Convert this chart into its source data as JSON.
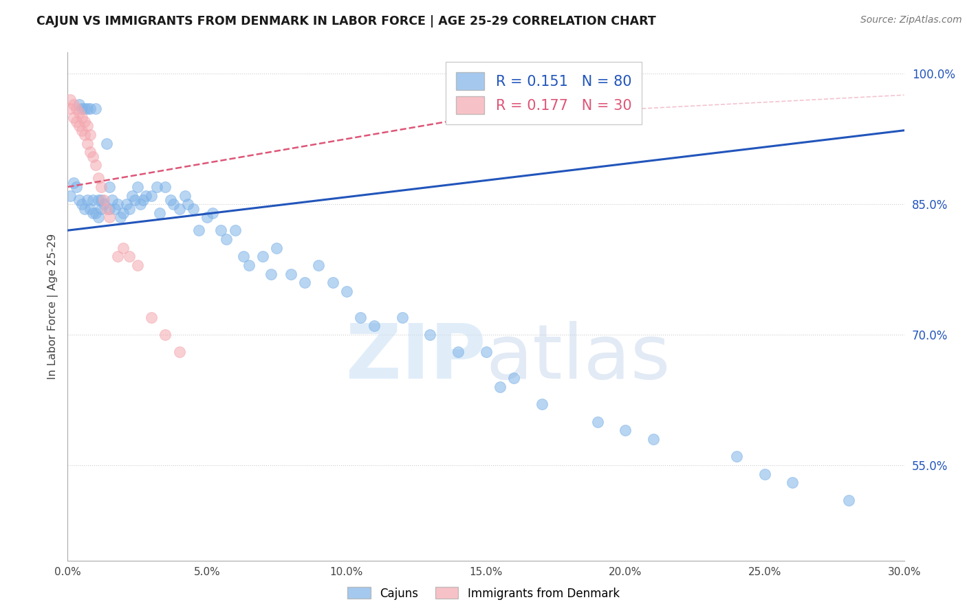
{
  "title": "CAJUN VS IMMIGRANTS FROM DENMARK IN LABOR FORCE | AGE 25-29 CORRELATION CHART",
  "source": "Source: ZipAtlas.com",
  "ylabel": "In Labor Force | Age 25-29",
  "xmin": 0.0,
  "xmax": 0.3,
  "ymin": 0.44,
  "ymax": 1.025,
  "yticks": [
    0.55,
    0.7,
    0.85,
    1.0
  ],
  "ytick_labels": [
    "55.0%",
    "70.0%",
    "85.0%",
    "100.0%"
  ],
  "xticks": [
    0.0,
    0.05,
    0.1,
    0.15,
    0.2,
    0.25,
    0.3
  ],
  "xtick_labels": [
    "0.0%",
    "5.0%",
    "10.0%",
    "15.0%",
    "20.0%",
    "25.0%",
    "30.0%"
  ],
  "legend_blue_r": "R = 0.151",
  "legend_blue_n": "N = 80",
  "legend_pink_r": "R = 0.177",
  "legend_pink_n": "N = 30",
  "blue_color": "#7fb3e8",
  "pink_color": "#f4a8b0",
  "trend_blue_color": "#2255bb",
  "trend_pink_color": "#dd5577",
  "watermark_zip": "ZIP",
  "watermark_atlas": "atlas",
  "blue_scatter_x": [
    0.001,
    0.002,
    0.003,
    0.004,
    0.004,
    0.005,
    0.005,
    0.006,
    0.006,
    0.007,
    0.007,
    0.008,
    0.008,
    0.009,
    0.009,
    0.01,
    0.01,
    0.011,
    0.011,
    0.012,
    0.012,
    0.013,
    0.014,
    0.015,
    0.015,
    0.016,
    0.017,
    0.018,
    0.019,
    0.02,
    0.021,
    0.022,
    0.023,
    0.024,
    0.025,
    0.026,
    0.027,
    0.028,
    0.03,
    0.032,
    0.033,
    0.035,
    0.037,
    0.038,
    0.04,
    0.042,
    0.043,
    0.045,
    0.047,
    0.05,
    0.052,
    0.055,
    0.057,
    0.06,
    0.063,
    0.065,
    0.07,
    0.073,
    0.075,
    0.08,
    0.085,
    0.09,
    0.095,
    0.1,
    0.105,
    0.11,
    0.12,
    0.13,
    0.14,
    0.15,
    0.155,
    0.16,
    0.17,
    0.19,
    0.2,
    0.21,
    0.24,
    0.25,
    0.26,
    0.28
  ],
  "blue_scatter_y": [
    0.86,
    0.875,
    0.87,
    0.965,
    0.855,
    0.96,
    0.85,
    0.96,
    0.845,
    0.96,
    0.855,
    0.96,
    0.845,
    0.855,
    0.84,
    0.96,
    0.84,
    0.855,
    0.835,
    0.855,
    0.845,
    0.85,
    0.92,
    0.87,
    0.845,
    0.855,
    0.845,
    0.85,
    0.835,
    0.84,
    0.85,
    0.845,
    0.86,
    0.855,
    0.87,
    0.85,
    0.855,
    0.86,
    0.86,
    0.87,
    0.84,
    0.87,
    0.855,
    0.85,
    0.845,
    0.86,
    0.85,
    0.845,
    0.82,
    0.835,
    0.84,
    0.82,
    0.81,
    0.82,
    0.79,
    0.78,
    0.79,
    0.77,
    0.8,
    0.77,
    0.76,
    0.78,
    0.76,
    0.75,
    0.72,
    0.71,
    0.72,
    0.7,
    0.68,
    0.68,
    0.64,
    0.65,
    0.62,
    0.6,
    0.59,
    0.58,
    0.56,
    0.54,
    0.53,
    0.51
  ],
  "pink_scatter_x": [
    0.001,
    0.001,
    0.002,
    0.002,
    0.003,
    0.003,
    0.004,
    0.004,
    0.005,
    0.005,
    0.006,
    0.006,
    0.007,
    0.007,
    0.008,
    0.008,
    0.009,
    0.01,
    0.011,
    0.012,
    0.013,
    0.014,
    0.015,
    0.018,
    0.02,
    0.022,
    0.025,
    0.03,
    0.035,
    0.04
  ],
  "pink_scatter_y": [
    0.97,
    0.96,
    0.965,
    0.95,
    0.96,
    0.945,
    0.955,
    0.94,
    0.95,
    0.935,
    0.945,
    0.93,
    0.94,
    0.92,
    0.93,
    0.91,
    0.905,
    0.895,
    0.88,
    0.87,
    0.855,
    0.845,
    0.835,
    0.79,
    0.8,
    0.79,
    0.78,
    0.72,
    0.7,
    0.68
  ],
  "blue_trend_x0": 0.0,
  "blue_trend_x1": 0.3,
  "blue_trend_y0": 0.82,
  "blue_trend_y1": 0.935,
  "pink_trend_x0": 0.0,
  "pink_trend_x1": 0.145,
  "pink_trend_y0": 0.87,
  "pink_trend_y1": 0.95
}
